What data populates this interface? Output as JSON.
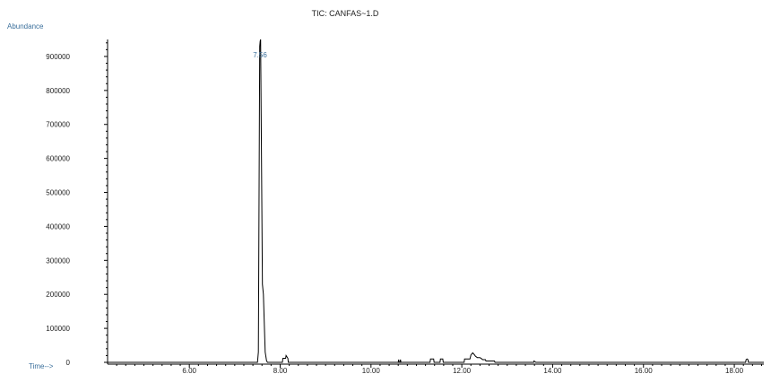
{
  "chart_data": {
    "type": "line",
    "title": "TIC: CANFAS~1.D",
    "ylabel": "Abundance",
    "xlabel": "Time-->",
    "xlim": [
      4.2,
      18.65
    ],
    "ylim": [
      0,
      950000
    ],
    "y_ticks": [
      "900000",
      "800000",
      "700000",
      "600000",
      "500000",
      "400000",
      "300000",
      "200000",
      "100000",
      "0"
    ],
    "x_ticks": [
      "6.00",
      "8.00",
      "10.00",
      "12.00",
      "14.00",
      "16.00",
      "18.00"
    ],
    "x_tick_values": [
      6,
      8,
      10,
      12,
      14,
      16,
      18
    ],
    "annotations": [
      {
        "text": "7.56",
        "x": 7.56
      }
    ],
    "series": [
      {
        "x": [
          4.2,
          7.5,
          7.52,
          7.55,
          7.56,
          7.57,
          7.61,
          7.63,
          7.67,
          7.7,
          7.72,
          8.05,
          8.06,
          8.12,
          8.13,
          8.17,
          8.18,
          10.6,
          10.61,
          10.62,
          10.64,
          10.65,
          10.66,
          11.3,
          11.31,
          11.38,
          11.39,
          11.52,
          11.53,
          11.58,
          11.59,
          12.05,
          12.06,
          12.18,
          12.2,
          12.24,
          12.28,
          12.3,
          12.34,
          12.4,
          12.44,
          12.46,
          12.52,
          12.53,
          12.72,
          12.73,
          13.58,
          13.59,
          13.63,
          18.25,
          18.26,
          18.28,
          18.3,
          18.31,
          18.65
        ],
        "y": [
          0,
          0,
          30000,
          930000,
          945000,
          950000,
          230000,
          200000,
          30000,
          5000,
          0,
          0,
          12000,
          12000,
          20000,
          12000,
          0,
          0,
          8000,
          0,
          0,
          8000,
          0,
          0,
          10000,
          10000,
          0,
          0,
          10000,
          10000,
          0,
          0,
          10000,
          10000,
          22000,
          28000,
          22000,
          18000,
          14000,
          14000,
          10000,
          8000,
          8000,
          4000,
          4000,
          0,
          0,
          4000,
          0,
          0,
          8000,
          10000,
          8000,
          0,
          0
        ]
      }
    ]
  }
}
